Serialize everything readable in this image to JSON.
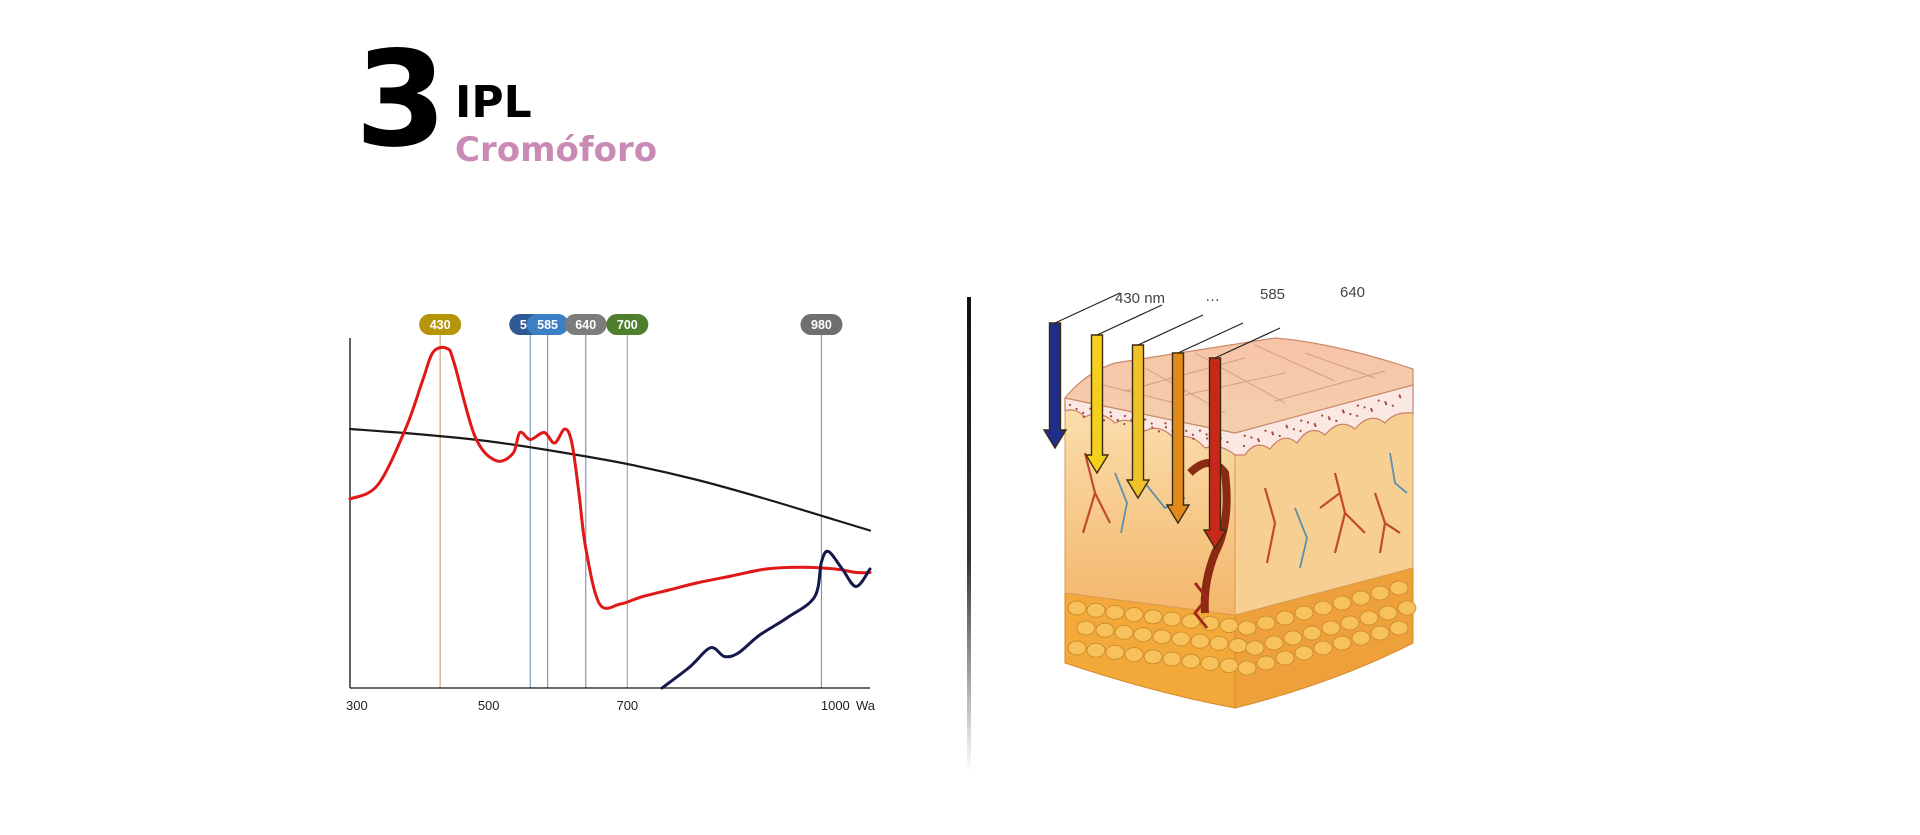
{
  "header": {
    "number": "3",
    "title": "IPL",
    "subtitle": "Cromóforo",
    "subtitle_color": "#c98bb5"
  },
  "chart_data": {
    "type": "line",
    "x_range": [
      300,
      1050
    ],
    "y_range": [
      0,
      1
    ],
    "x_ticks": [
      {
        "value": 300,
        "label": "300"
      },
      {
        "value": 500,
        "label": "500"
      },
      {
        "value": 700,
        "label": "700"
      },
      {
        "value": 1000,
        "label": "1000"
      }
    ],
    "x_axis_label": "Wa",
    "grid": false,
    "wavelength_markers": [
      {
        "value": 430,
        "label": "430",
        "color": "#b7950b",
        "line_color": "#c8a67a"
      },
      {
        "value": 560,
        "label": "560",
        "color": "#2f5a96",
        "line_color": "#7f97c2"
      },
      {
        "value": 585,
        "label": "585",
        "color": "#3b7fc4",
        "line_color": "#7f97c2"
      },
      {
        "value": 640,
        "label": "640",
        "color": "#7d7d7d",
        "line_color": "#7f97c2"
      },
      {
        "value": 700,
        "label": "700",
        "color": "#4f7f2d",
        "line_color": "#c8a67a"
      },
      {
        "value": 980,
        "label": "980",
        "color": "#6f6f6f",
        "line_color": "#7f97c2"
      }
    ],
    "series": [
      {
        "color": "#1a1a1a",
        "x": [
          300,
          400,
          500,
          600,
          700,
          800,
          900,
          1000,
          1050
        ],
        "y": [
          0.74,
          0.725,
          0.705,
          0.675,
          0.64,
          0.595,
          0.54,
          0.48,
          0.45
        ]
      },
      {
        "color": "#e01818",
        "x": [
          300,
          340,
          380,
          405,
          420,
          440,
          450,
          480,
          510,
          535,
          545,
          560,
          580,
          595,
          610,
          620,
          630,
          640,
          660,
          690,
          720,
          760,
          800,
          850,
          900,
          950,
          1000,
          1030,
          1050
        ],
        "y": [
          0.54,
          0.58,
          0.74,
          0.88,
          0.96,
          0.97,
          0.93,
          0.72,
          0.65,
          0.67,
          0.73,
          0.71,
          0.73,
          0.7,
          0.74,
          0.7,
          0.56,
          0.4,
          0.24,
          0.24,
          0.26,
          0.28,
          0.3,
          0.32,
          0.34,
          0.345,
          0.34,
          0.33,
          0.33
        ]
      },
      {
        "color": "#14184a",
        "x": [
          750,
          790,
          820,
          840,
          860,
          890,
          930,
          970,
          980,
          990,
          1010,
          1030,
          1050
        ],
        "y": [
          0.0,
          0.06,
          0.115,
          0.09,
          0.1,
          0.15,
          0.2,
          0.26,
          0.36,
          0.39,
          0.34,
          0.29,
          0.34
        ]
      }
    ]
  },
  "skin_diagram": {
    "labels": [
      "430 nm",
      "…",
      "585",
      "640"
    ],
    "arrow_colors": [
      "#1e2e8a",
      "#f4d01c",
      "#f0c22a",
      "#e08a1c",
      "#c8281a"
    ]
  }
}
